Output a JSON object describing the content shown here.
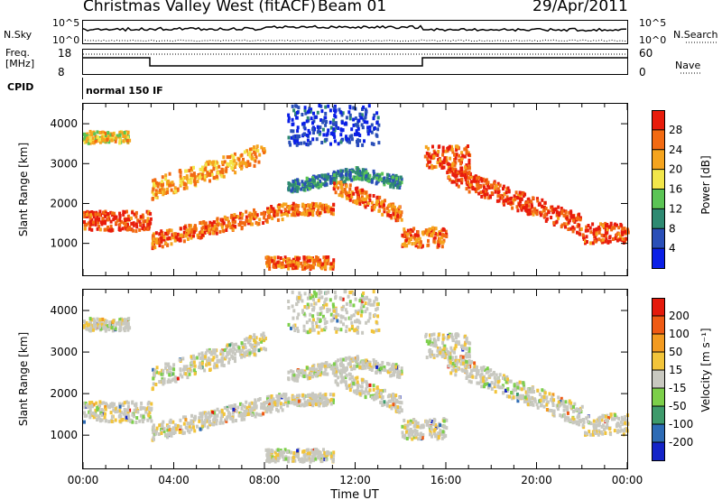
{
  "header": {
    "title": "Christmas Valley West (fitACF)",
    "beam": "Beam 01",
    "date": "29/Apr/2011"
  },
  "top_panels": {
    "nsky_label": "N.Sky",
    "nsky_ticks": [
      "10^5",
      "10^0"
    ],
    "nsearch_label": "N.Search",
    "nsearch_ticks": [
      "10^5",
      "10^0"
    ],
    "freq_label": "Freq.",
    "freq_unit": "[MHz]",
    "freq_ticks": [
      "18",
      "8"
    ],
    "nave_label": "Nave",
    "nave_ticks": [
      "60",
      "0"
    ],
    "cpid_label": "CPID",
    "cpid_value": "normal 150 IF"
  },
  "chart_data": [
    {
      "type": "heatmap",
      "name": "power-panel",
      "xlabel": "",
      "ylabel": "Slant Range [km]",
      "ylim": [
        200,
        4500
      ],
      "xlim": [
        0,
        24
      ],
      "yticks": [
        "1000",
        "2000",
        "3000",
        "4000"
      ],
      "colorbar_label": "Power [dB]",
      "colorbar_ticks": [
        "4",
        "8",
        "12",
        "16",
        "20",
        "24",
        "28"
      ],
      "colorbar_colors": [
        "#0a1fe6",
        "#2a4fb8",
        "#2e8a72",
        "#5bc455",
        "#f2e64a",
        "#f5a41e",
        "#f26a12",
        "#e81c0c"
      ]
    },
    {
      "type": "heatmap",
      "name": "velocity-panel",
      "xlabel": "Time UT",
      "ylabel": "Slant Range [km]",
      "ylim": [
        200,
        4500
      ],
      "xlim": [
        0,
        24
      ],
      "yticks": [
        "1000",
        "2000",
        "3000",
        "4000"
      ],
      "xticks": [
        "00:00",
        "04:00",
        "08:00",
        "12:00",
        "16:00",
        "20:00",
        "00:00"
      ],
      "colorbar_label": "Velocity [m s⁻¹]",
      "colorbar_ticks": [
        "200",
        "100",
        "50",
        "15",
        "-15",
        "-50",
        "-100",
        "-200"
      ],
      "colorbar_colors": [
        "#1424c8",
        "#2d6bb5",
        "#3e9a6b",
        "#7ccf4a",
        "#c8c8c0",
        "#f2c43a",
        "#f29a20",
        "#ef5a14",
        "#e41a0c"
      ]
    }
  ]
}
